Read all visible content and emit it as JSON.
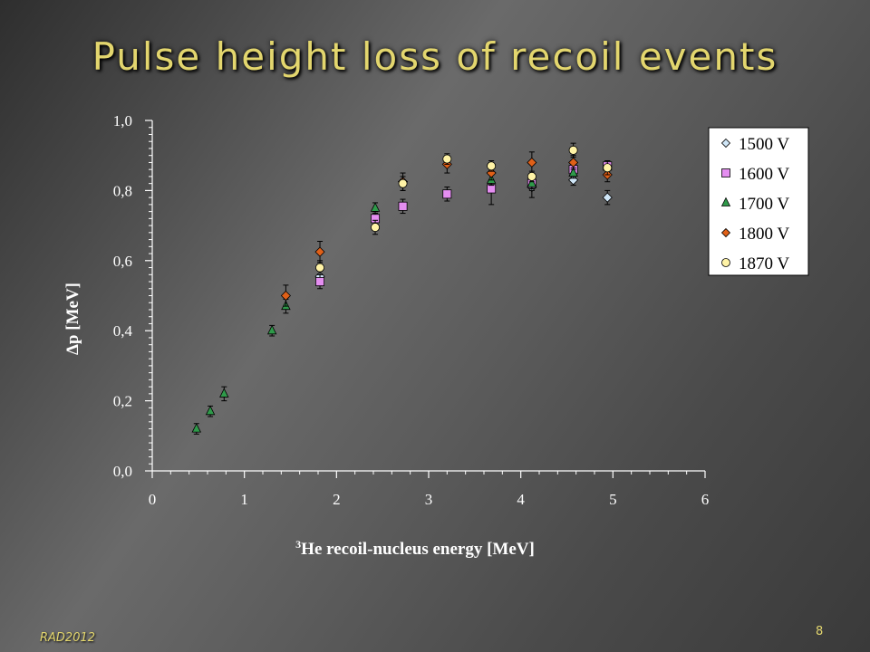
{
  "slide": {
    "title": "Pulse height loss of recoil events",
    "footer": "RAD2012",
    "page_number": "8"
  },
  "chart_data": {
    "type": "scatter",
    "title": "",
    "xlabel": "He recoil-nucleus energy [MeV]",
    "xlabel_superscript": "3",
    "ylabel": "Δp  [MeV]",
    "xlim": [
      0,
      6
    ],
    "ylim": [
      0,
      1
    ],
    "x_ticks": [
      "0",
      "1",
      "2",
      "3",
      "4",
      "5",
      "6"
    ],
    "y_ticks": [
      "0,0",
      "0,2",
      "0,4",
      "0,6",
      "0,8",
      "1,0"
    ],
    "legend_position": "top-right",
    "series": [
      {
        "name": "1500 V",
        "marker": "diamond",
        "color": "#cfe6f7",
        "points": [
          {
            "x": 1.82,
            "y": 0.555,
            "err": 0.02
          },
          {
            "x": 4.12,
            "y": 0.81,
            "err": 0.03
          },
          {
            "x": 4.57,
            "y": 0.83,
            "err": 0.015
          },
          {
            "x": 4.94,
            "y": 0.78,
            "err": 0.02
          }
        ]
      },
      {
        "name": "1600 V",
        "marker": "square",
        "color": "#e48ef0",
        "points": [
          {
            "x": 1.82,
            "y": 0.54,
            "err": 0.02
          },
          {
            "x": 2.42,
            "y": 0.72,
            "err": 0.02
          },
          {
            "x": 2.72,
            "y": 0.755,
            "err": 0.02
          },
          {
            "x": 3.2,
            "y": 0.79,
            "err": 0.02
          },
          {
            "x": 3.68,
            "y": 0.805,
            "err": 0.045
          },
          {
            "x": 4.12,
            "y": 0.82,
            "err": 0.02
          },
          {
            "x": 4.57,
            "y": 0.86,
            "err": 0.02
          },
          {
            "x": 4.94,
            "y": 0.87,
            "err": 0.015
          }
        ]
      },
      {
        "name": "1700 V",
        "marker": "triangle",
        "color": "#2f9a4a",
        "points": [
          {
            "x": 0.48,
            "y": 0.12,
            "err": 0.015
          },
          {
            "x": 0.63,
            "y": 0.17,
            "err": 0.015
          },
          {
            "x": 0.78,
            "y": 0.22,
            "err": 0.02
          },
          {
            "x": 1.3,
            "y": 0.4,
            "err": 0.015
          },
          {
            "x": 1.45,
            "y": 0.47,
            "err": 0.02
          },
          {
            "x": 2.42,
            "y": 0.75,
            "err": 0.015
          },
          {
            "x": 3.68,
            "y": 0.83,
            "err": 0.015
          },
          {
            "x": 4.12,
            "y": 0.82,
            "err": 0.015
          },
          {
            "x": 4.57,
            "y": 0.85,
            "err": 0.015
          }
        ]
      },
      {
        "name": "1800 V",
        "marker": "diamond",
        "color": "#e06018",
        "points": [
          {
            "x": 1.45,
            "y": 0.5,
            "err": 0.03
          },
          {
            "x": 1.82,
            "y": 0.625,
            "err": 0.03
          },
          {
            "x": 2.72,
            "y": 0.825,
            "err": 0.025
          },
          {
            "x": 3.2,
            "y": 0.875,
            "err": 0.025
          },
          {
            "x": 3.68,
            "y": 0.85,
            "err": 0.02
          },
          {
            "x": 4.12,
            "y": 0.88,
            "err": 0.03
          },
          {
            "x": 4.57,
            "y": 0.88,
            "err": 0.02
          },
          {
            "x": 4.94,
            "y": 0.845,
            "err": 0.02
          }
        ]
      },
      {
        "name": "1870 V",
        "marker": "circle",
        "color": "#fff3a6",
        "points": [
          {
            "x": 1.82,
            "y": 0.58,
            "err": 0.02
          },
          {
            "x": 2.42,
            "y": 0.695,
            "err": 0.02
          },
          {
            "x": 2.72,
            "y": 0.82,
            "err": 0.02
          },
          {
            "x": 3.2,
            "y": 0.89,
            "err": 0.015
          },
          {
            "x": 3.68,
            "y": 0.87,
            "err": 0.015
          },
          {
            "x": 4.12,
            "y": 0.84,
            "err": 0.015
          },
          {
            "x": 4.57,
            "y": 0.915,
            "err": 0.02
          },
          {
            "x": 4.94,
            "y": 0.865,
            "err": 0.02
          }
        ]
      }
    ]
  }
}
